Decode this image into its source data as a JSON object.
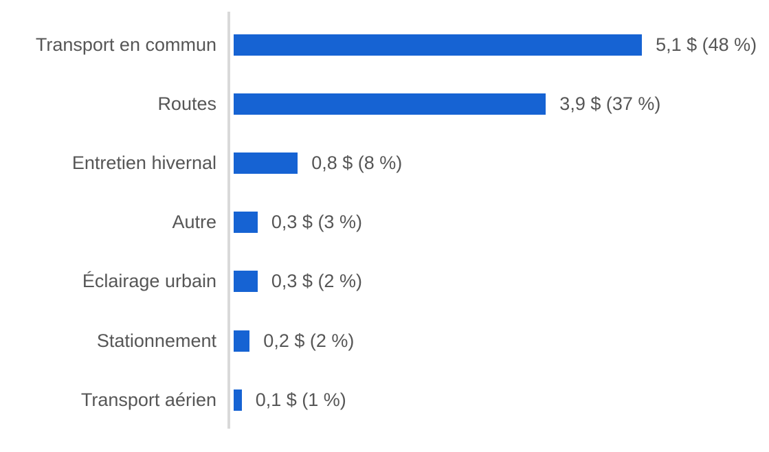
{
  "chart_data": {
    "type": "bar",
    "orientation": "horizontal",
    "title": "",
    "xlabel": "",
    "ylabel": "",
    "categories": [
      "Transport en commun",
      "Routes",
      "Entretien hivernal",
      "Autre",
      "Éclairage urbain",
      "Stationnement",
      "Transport aérien"
    ],
    "values": [
      5.1,
      3.9,
      0.8,
      0.3,
      0.3,
      0.2,
      0.1
    ],
    "value_labels": [
      "5,1 $ (48 %)",
      "3,9 $ (37 %)",
      "0,8 $ (8 %)",
      "0,3 $ (3 %)",
      "0,3 $ (2 %)",
      "0,2 $ (2 %)",
      "0,1 $ (1 %)"
    ],
    "rows": [
      {
        "label": "Transport en commun",
        "value": 5.1,
        "value_label": "5,1 $ (48 %)"
      },
      {
        "label": "Routes",
        "value": 3.9,
        "value_label": "3,9 $ (37 %)"
      },
      {
        "label": "Entretien hivernal",
        "value": 0.8,
        "value_label": "0,8 $ (8 %)"
      },
      {
        "label": "Autre",
        "value": 0.3,
        "value_label": "0,3 $ (3 %)"
      },
      {
        "label": "Éclairage urbain",
        "value": 0.3,
        "value_label": "0,3 $ (2 %)"
      },
      {
        "label": "Stationnement",
        "value": 0.2,
        "value_label": "0,2 $ (2 %)"
      },
      {
        "label": "Transport aérien",
        "value": 0.1,
        "value_label": "0,1 $ (1 %)"
      }
    ],
    "xlim": [
      0,
      6.7
    ],
    "grid": false,
    "legend": "none",
    "axis_ticks_visible": false,
    "colors": {
      "bar": "#1663D3",
      "axis_line": "#D9D9D9",
      "text": "#565656"
    }
  }
}
